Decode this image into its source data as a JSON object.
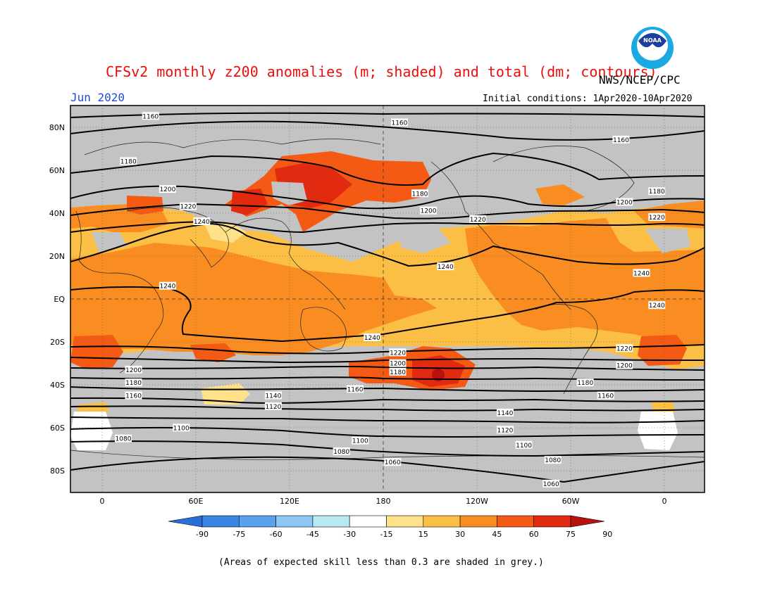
{
  "header": {
    "title": "CFSv2 monthly z200 anomalies (m; shaded) and total (dm; contours)",
    "month": "Jun 2020",
    "agency": "NWS/NCEP/CPC",
    "initial_conditions": "Initial conditions: 1Apr2020-10Apr2020",
    "logo_text": "NOAA"
  },
  "axes": {
    "lat_labels": [
      "80N",
      "60N",
      "40N",
      "20N",
      "EQ",
      "20S",
      "40S",
      "60S",
      "80S"
    ],
    "lon_labels": [
      "0",
      "60E",
      "120E",
      "180",
      "120W",
      "60W",
      "0"
    ]
  },
  "contour_labels": [
    {
      "text": "1160",
      "lon": 30,
      "lat": 85
    },
    {
      "text": "1160",
      "lon": 176,
      "lat": 82
    },
    {
      "text": "1160",
      "lon": -54,
      "lat": 74
    },
    {
      "text": "1180",
      "lon": 17,
      "lat": 64
    },
    {
      "text": "1180",
      "lon": -33,
      "lat": 50
    },
    {
      "text": "1180",
      "lon": -172,
      "lat": 49
    },
    {
      "text": "1200",
      "lon": 40,
      "lat": 51
    },
    {
      "text": "1200",
      "lon": -167,
      "lat": 41
    },
    {
      "text": "1200",
      "lon": -52,
      "lat": 45
    },
    {
      "text": "1220",
      "lon": 52,
      "lat": 43
    },
    {
      "text": "1220",
      "lon": -138,
      "lat": 37
    },
    {
      "text": "1220",
      "lon": -33,
      "lat": 38
    },
    {
      "text": "1240",
      "lon": 60,
      "lat": 36
    },
    {
      "text": "1240",
      "lon": -157,
      "lat": 15
    },
    {
      "text": "1240",
      "lon": -42,
      "lat": 12
    },
    {
      "text": "1240",
      "lon": 40,
      "lat": 6
    },
    {
      "text": "1240",
      "lon": -33,
      "lat": -3
    },
    {
      "text": "1240",
      "lon": 160,
      "lat": -18
    },
    {
      "text": "1220",
      "lon": -52,
      "lat": -23
    },
    {
      "text": "1220",
      "lon": 175,
      "lat": -25
    },
    {
      "text": "1200",
      "lon": 175,
      "lat": -30
    },
    {
      "text": "1200",
      "lon": -52,
      "lat": -31
    },
    {
      "text": "1200",
      "lon": 20,
      "lat": -33
    },
    {
      "text": "1180",
      "lon": 20,
      "lat": -39
    },
    {
      "text": "1180",
      "lon": 175,
      "lat": -34
    },
    {
      "text": "1180",
      "lon": -75,
      "lat": -39
    },
    {
      "text": "1160",
      "lon": 20,
      "lat": -45
    },
    {
      "text": "1160",
      "lon": 150,
      "lat": -42
    },
    {
      "text": "1160",
      "lon": -63,
      "lat": -45
    },
    {
      "text": "1140",
      "lon": 102,
      "lat": -45
    },
    {
      "text": "1140",
      "lon": -122,
      "lat": -53
    },
    {
      "text": "1120",
      "lon": 102,
      "lat": -50
    },
    {
      "text": "1120",
      "lon": -122,
      "lat": -61
    },
    {
      "text": "1100",
      "lon": 48,
      "lat": -60
    },
    {
      "text": "1100",
      "lon": 153,
      "lat": -66
    },
    {
      "text": "1100",
      "lon": -111,
      "lat": -68
    },
    {
      "text": "1080",
      "lon": 14,
      "lat": -65
    },
    {
      "text": "1080",
      "lon": 142,
      "lat": -71
    },
    {
      "text": "1080",
      "lon": -94,
      "lat": -75
    },
    {
      "text": "1060",
      "lon": 172,
      "lat": -76
    },
    {
      "text": "1060",
      "lon": -95,
      "lat": -86
    }
  ],
  "colorbar": {
    "labels": [
      "-90",
      "-75",
      "-60",
      "-45",
      "-30",
      "-15",
      "15",
      "30",
      "45",
      "60",
      "75",
      "90"
    ],
    "colors": [
      "#2a6fd8",
      "#3a86e6",
      "#5aa2ee",
      "#8ec6f4",
      "#b8e8f2",
      "#ffffff",
      "#ffe18a",
      "#fbbf45",
      "#f98d22",
      "#f45a14",
      "#e22a10",
      "#b8120e"
    ]
  },
  "shading": {
    "grey": "#c3c3c3",
    "light_orange": "#fbbf45",
    "orange": "#f98d22",
    "red_orange": "#f45a14",
    "red": "#e22a10",
    "yellow": "#ffe18a"
  },
  "footnote": "(Areas of expected skill less than 0.3 are shaded in grey.)"
}
